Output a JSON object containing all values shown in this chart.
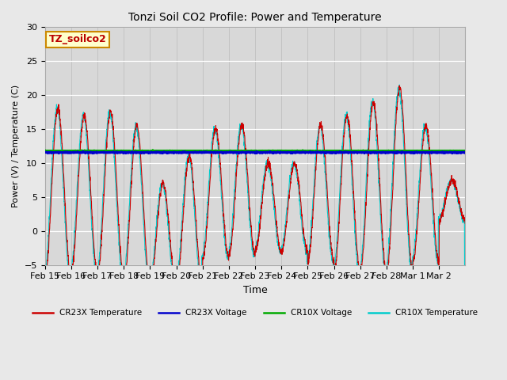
{
  "title": "Tonzi Soil CO2 Profile: Power and Temperature",
  "ylabel": "Power (V) / Temperature (C)",
  "xlabel": "Time",
  "ylim": [
    -5,
    30
  ],
  "annotation_label": "TZ_soilco2",
  "fig_bg_color": "#e8e8e8",
  "plot_bg_color": "#d8d8d8",
  "cr23x_temp_color": "#cc0000",
  "cr23x_volt_color": "#0000cc",
  "cr10x_volt_color": "#00aa00",
  "cr10x_temp_color": "#00cccc",
  "cr23x_volt_value": 11.55,
  "cr10x_volt_value": 11.75,
  "x_tick_labels": [
    "Feb 15",
    "Feb 16",
    "Feb 17",
    "Feb 18",
    "Feb 19",
    "Feb 20",
    "Feb 21",
    "Feb 22",
    "Feb 23",
    "Feb 24",
    "Feb 25",
    "Feb 26",
    "Feb 27",
    "Feb 28",
    "Mar 1",
    "Mar 2"
  ],
  "num_days": 16,
  "legend_labels": [
    "CR23X Temperature",
    "CR23X Voltage",
    "CR10X Voltage",
    "CR10X Temperature"
  ],
  "day_amps": [
    12.5,
    11.5,
    12.0,
    11.5,
    7.5,
    9.5,
    9.5,
    9.5,
    6.5,
    6.5,
    10.0,
    11.5,
    12.5,
    13.5,
    10.0,
    3.0
  ],
  "day_centers": [
    5.5,
    5.5,
    5.5,
    4.0,
    -0.5,
    1.5,
    5.5,
    6.0,
    3.5,
    3.5,
    5.5,
    5.5,
    6.5,
    7.5,
    5.5,
    4.5
  ]
}
